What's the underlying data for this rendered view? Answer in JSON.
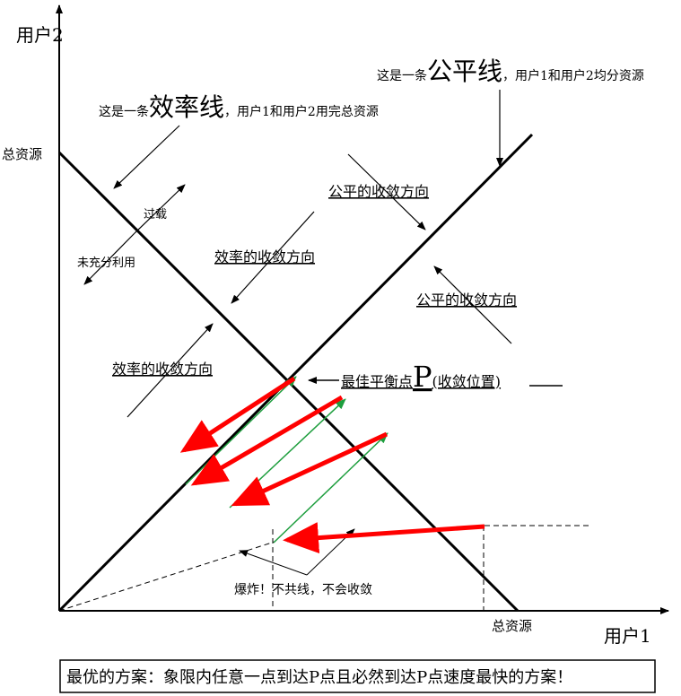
{
  "axes": {
    "y_label": "用户2",
    "x_label": "用户1",
    "y_total": "总资源",
    "x_total": "总资源"
  },
  "callouts": {
    "efficiency_line": {
      "prefix": "这是一条",
      "big": "效率线",
      "suffix": "，用户1和用户2用完总资源"
    },
    "fairness_line": {
      "prefix": "这是一条",
      "big": "公平线",
      "suffix": "，用户1和用户2均分资源"
    }
  },
  "labels": {
    "overload": "过载",
    "underused": "未充分利用",
    "fair_converge_1": "公平的收敛方向",
    "fair_converge_2": "公平的收敛方向",
    "eff_converge_1": "效率的收敛方向",
    "eff_converge_2": "效率的收敛方向",
    "optimal_prefix": "最佳平衡点",
    "optimal_point": "P",
    "optimal_suffix": "(收敛位置)",
    "explode": "爆炸！不共线，不会收敛"
  },
  "caption": "最优的方案：象限内任意一点到达P点且必然到达P点速度最快的方案！",
  "colors": {
    "red_arrow": "#ff0000",
    "green_arrow": "#1e9e3e",
    "line": "#000000"
  }
}
